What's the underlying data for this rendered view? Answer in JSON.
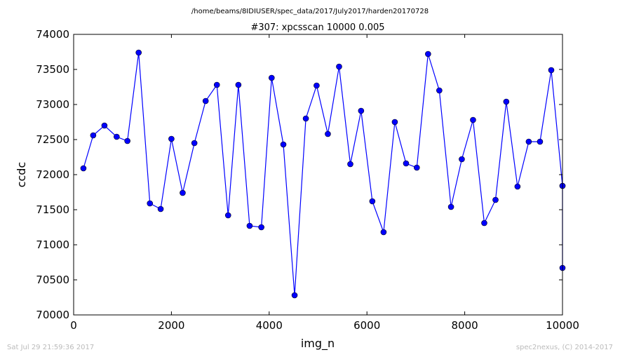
{
  "header": {
    "suptitle": "/home/beams/8IDIUSER/spec_data/2017/July2017/harden20170728",
    "title": "#307: xpcsscan 10000 0.005"
  },
  "footer": {
    "left": "Sat Jul 29 21:59:36 2017",
    "right": "spec2nexus, (C) 2014-2017"
  },
  "chart_data": {
    "type": "line",
    "title": "#307: xpcsscan 10000 0.005",
    "xlabel": "img_n",
    "ylabel": "ccdc",
    "xlim": [
      0,
      10000
    ],
    "ylim": [
      70000,
      74000
    ],
    "xticks": [
      "0",
      "2000",
      "4000",
      "6000",
      "8000",
      "10000"
    ],
    "yticks": [
      "70000",
      "70500",
      "71000",
      "71500",
      "72000",
      "72500",
      "73000",
      "73500",
      "74000"
    ],
    "grid": false,
    "marker": "circle",
    "color": "#0000ff",
    "series": [
      {
        "x": [
          200,
          400,
          630,
          880,
          1100,
          1330,
          1560,
          1780,
          2000,
          2230,
          2470,
          2700,
          2930,
          3160,
          3370,
          3600,
          3840,
          4050,
          4290,
          4520,
          4750,
          4970,
          5200,
          5430,
          5660,
          5880,
          6110,
          6340,
          6570,
          6800,
          7020,
          7250,
          7480,
          7720,
          7940,
          8170,
          8400,
          8630,
          8850,
          9080,
          9310,
          9540,
          9770,
          10000,
          10000,
          10000
        ],
        "y": [
          72090,
          72560,
          72700,
          72540,
          72480,
          73740,
          71590,
          71510,
          72510,
          71740,
          72450,
          73050,
          73280,
          71420,
          73280,
          71270,
          71250,
          73380,
          72430,
          70280,
          72800,
          73270,
          72580,
          73540,
          72150,
          72910,
          71620,
          71180,
          72750,
          72160,
          72100,
          73720,
          73200,
          71540,
          72220,
          72780,
          71310,
          71640,
          73040,
          71830,
          72470,
          72470,
          73490,
          71840,
          70670,
          71840
        ]
      }
    ]
  }
}
